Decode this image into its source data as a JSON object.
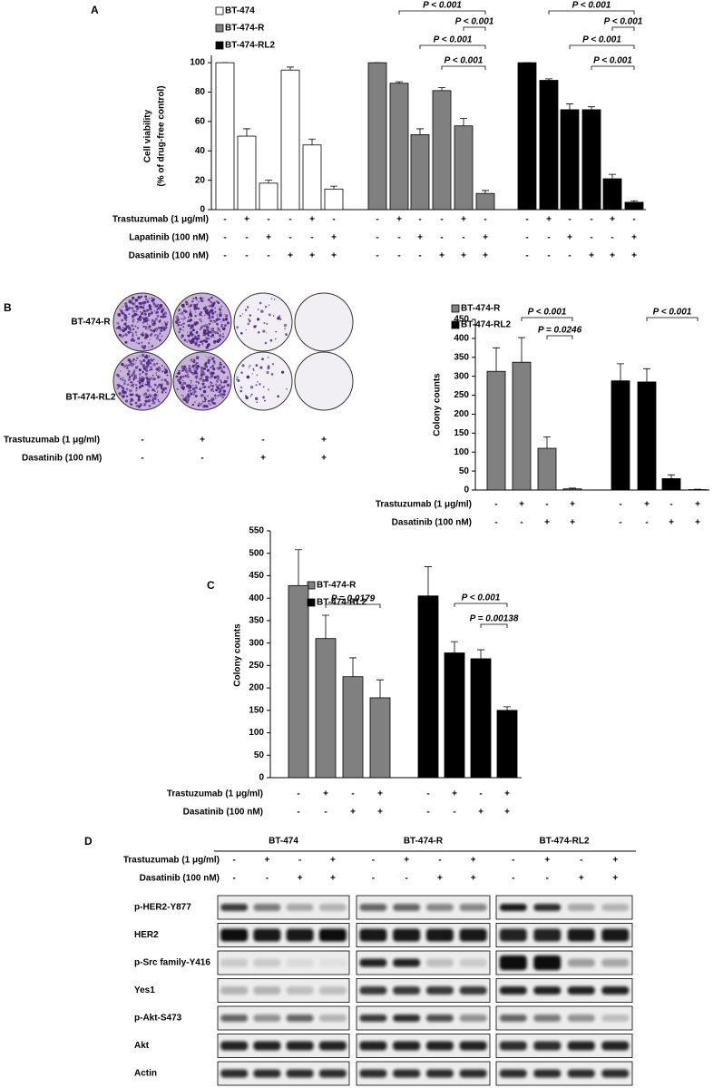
{
  "panel_labels": [
    "A",
    "B",
    "C",
    "D"
  ],
  "chart_data": [
    {
      "type": "bar",
      "ylabel": [
        "Cell viability",
        "(% of drug-free control)"
      ],
      "ylim": [
        0,
        105
      ],
      "yticks": [
        0,
        20,
        40,
        60,
        80,
        100
      ],
      "series": [
        {
          "name": "BT-474",
          "color": "#ffffff",
          "values": [
            100,
            50,
            18,
            95,
            44,
            14
          ],
          "errors": [
            0,
            5,
            2,
            2,
            4,
            2
          ]
        },
        {
          "name": "BT-474-R",
          "color": "#808080",
          "values": [
            100,
            86,
            51,
            81,
            57,
            11
          ],
          "errors": [
            0,
            1,
            4,
            2,
            5,
            2
          ]
        },
        {
          "name": "BT-474-RL2",
          "color": "#000000",
          "values": [
            100,
            88,
            68,
            68,
            21,
            5
          ],
          "errors": [
            0,
            1,
            4,
            2,
            3,
            1
          ]
        }
      ],
      "treatments": [
        {
          "name": "Trastuzumab (1 μg/ml)",
          "signs": [
            "-",
            "+",
            "-",
            "-",
            "+",
            "-"
          ]
        },
        {
          "name": "Lapatinib (100 nM)",
          "signs": [
            "-",
            "-",
            "+",
            "-",
            "-",
            "+"
          ]
        },
        {
          "name": "Dasatinib (100 nM)",
          "signs": [
            "-",
            "-",
            "-",
            "+",
            "+",
            "+"
          ]
        }
      ],
      "annotations": [
        "P < 0.001",
        "P < 0.001",
        "P < 0.001",
        "P < 0.001",
        "P < 0.001",
        "P < 0.001",
        "P < 0.001",
        "P < 0.001"
      ]
    },
    {
      "type": "bar",
      "ylabel": [
        "Colony counts"
      ],
      "ylim": [
        0,
        450
      ],
      "yticks": [
        0,
        50,
        100,
        150,
        200,
        250,
        300,
        350,
        400,
        450
      ],
      "series": [
        {
          "name": "BT-474-R",
          "color": "#808080",
          "values": [
            313,
            337,
            110,
            3
          ],
          "errors": [
            62,
            65,
            30,
            2
          ]
        },
        {
          "name": "BT-474-RL2",
          "color": "#000000",
          "values": [
            288,
            285,
            30,
            1
          ],
          "errors": [
            45,
            35,
            10,
            1
          ]
        }
      ],
      "treatments": [
        {
          "name": "Trastuzumab (1 μg/ml)",
          "signs": [
            "-",
            "+",
            "-",
            "+"
          ]
        },
        {
          "name": "Dasatinib (100 nM)",
          "signs": [
            "-",
            "-",
            "+",
            "+"
          ]
        }
      ],
      "annotations": [
        "P < 0.001",
        "P = 0.0246",
        "P < 0.001"
      ]
    },
    {
      "type": "bar",
      "ylabel": [
        "Colony counts"
      ],
      "ylim": [
        0,
        550
      ],
      "yticks": [
        0,
        50,
        100,
        150,
        200,
        250,
        300,
        350,
        400,
        450,
        500,
        550
      ],
      "series": [
        {
          "name": "BT-474-R",
          "color": "#808080",
          "values": [
            428,
            310,
            225,
            178
          ],
          "errors": [
            80,
            52,
            42,
            40
          ]
        },
        {
          "name": "BT-474-RL2",
          "color": "#000000",
          "values": [
            405,
            278,
            265,
            150
          ],
          "errors": [
            65,
            25,
            20,
            8
          ]
        }
      ],
      "treatments": [
        {
          "name": "Trastuzumab (1 μg/ml)",
          "signs": [
            "-",
            "+",
            "-",
            "+"
          ]
        },
        {
          "name": "Dasatinib (100 nM)",
          "signs": [
            "-",
            "-",
            "+",
            "+"
          ]
        }
      ],
      "annotations": [
        "P = 0.0179",
        "P < 0.001",
        "P = 0.00138"
      ]
    }
  ],
  "plates": {
    "rows": [
      "BT-474-R",
      "BT-474-RL2"
    ],
    "treatments": [
      {
        "name": "Trastuzumab (1 μg/ml)",
        "signs": [
          "-",
          "+",
          "-",
          "+"
        ]
      },
      {
        "name": "Dasatinib (100 nM)",
        "signs": [
          "-",
          "-",
          "+",
          "+"
        ]
      }
    ]
  },
  "western": {
    "cell_lines": [
      "BT-474",
      "BT-474-R",
      "BT-474-RL2"
    ],
    "treatments": [
      {
        "name": "Trastuzumab (1 μg/ml)",
        "signs": [
          "-",
          "+",
          "-",
          "+"
        ]
      },
      {
        "name": "Dasatinib (100 nM)",
        "signs": [
          "-",
          "-",
          "+",
          "+"
        ]
      }
    ],
    "proteins": [
      "p-HER2-Y877",
      "HER2",
      "p-Src family-Y416",
      "Yes1",
      "p-Akt-S473",
      "Akt",
      "Actin"
    ]
  }
}
